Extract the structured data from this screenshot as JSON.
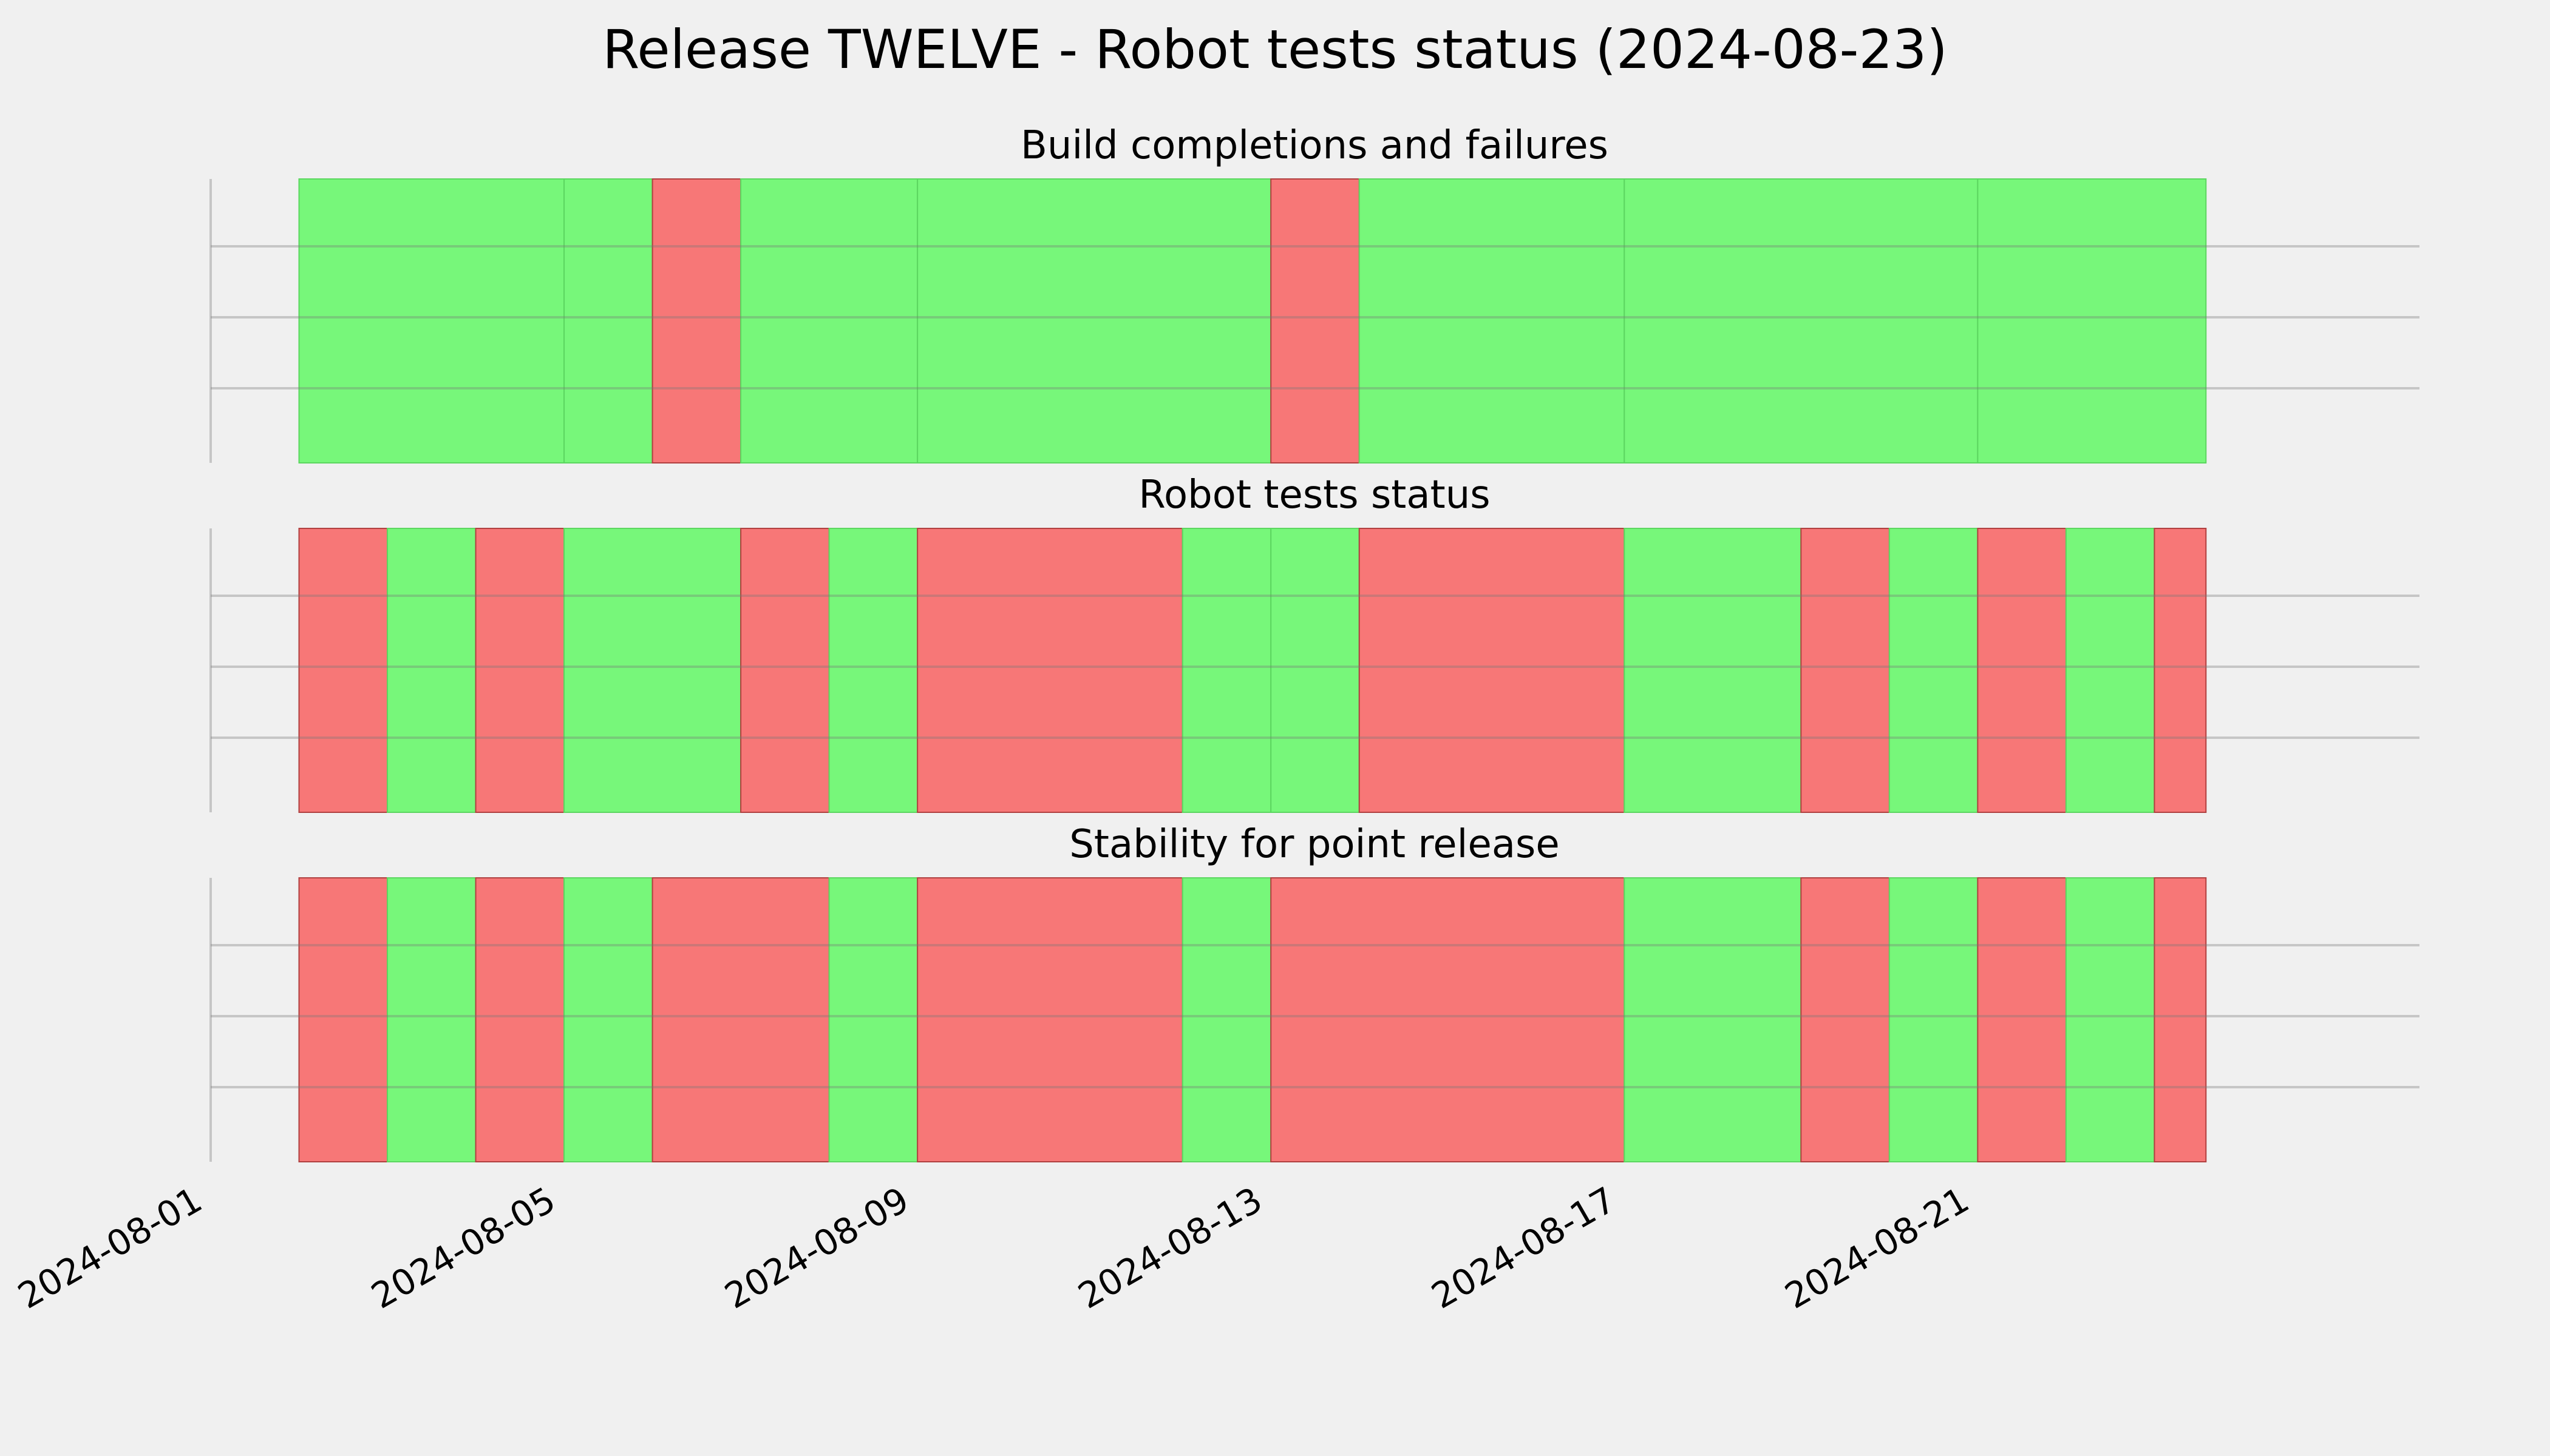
{
  "chart_data": {
    "type": "timeline-status",
    "title": "Release TWELVE - Robot tests status (2024-08-23)",
    "xlim": [
      "2024-08-01",
      "2024-08-26"
    ],
    "x_ticks": [
      "2024-08-01",
      "2024-08-05",
      "2024-08-09",
      "2024-08-13",
      "2024-08-17",
      "2024-08-21"
    ],
    "grid": true,
    "colors": {
      "pass": "#77f77a",
      "fail": "#f77777",
      "background": "#f0f0f0",
      "grid": "#cbcbcb"
    },
    "panels": [
      {
        "title": "Build completions and failures",
        "segments": [
          {
            "start": "2024-08-02",
            "end": "2024-08-05",
            "status": "pass"
          },
          {
            "start": "2024-08-05",
            "end": "2024-08-06",
            "status": "pass"
          },
          {
            "start": "2024-08-06",
            "end": "2024-08-07",
            "status": "fail"
          },
          {
            "start": "2024-08-07",
            "end": "2024-08-09",
            "status": "pass"
          },
          {
            "start": "2024-08-09",
            "end": "2024-08-13",
            "status": "pass"
          },
          {
            "start": "2024-08-13",
            "end": "2024-08-14",
            "status": "fail"
          },
          {
            "start": "2024-08-14",
            "end": "2024-08-17",
            "status": "pass"
          },
          {
            "start": "2024-08-17",
            "end": "2024-08-21",
            "status": "pass"
          },
          {
            "start": "2024-08-21",
            "end": "2024-08-23 14:00",
            "status": "pass"
          }
        ]
      },
      {
        "title": "Robot tests status",
        "segments": [
          {
            "start": "2024-08-02",
            "end": "2024-08-03",
            "status": "fail"
          },
          {
            "start": "2024-08-03",
            "end": "2024-08-04",
            "status": "pass"
          },
          {
            "start": "2024-08-04",
            "end": "2024-08-05",
            "status": "fail"
          },
          {
            "start": "2024-08-05",
            "end": "2024-08-07",
            "status": "pass"
          },
          {
            "start": "2024-08-07",
            "end": "2024-08-08",
            "status": "fail"
          },
          {
            "start": "2024-08-08",
            "end": "2024-08-09",
            "status": "pass"
          },
          {
            "start": "2024-08-09",
            "end": "2024-08-12",
            "status": "fail"
          },
          {
            "start": "2024-08-12",
            "end": "2024-08-13",
            "status": "pass"
          },
          {
            "start": "2024-08-13",
            "end": "2024-08-14",
            "status": "pass"
          },
          {
            "start": "2024-08-14",
            "end": "2024-08-17",
            "status": "fail"
          },
          {
            "start": "2024-08-17",
            "end": "2024-08-19",
            "status": "pass"
          },
          {
            "start": "2024-08-19",
            "end": "2024-08-20",
            "status": "fail"
          },
          {
            "start": "2024-08-20",
            "end": "2024-08-21",
            "status": "pass"
          },
          {
            "start": "2024-08-21",
            "end": "2024-08-22",
            "status": "fail"
          },
          {
            "start": "2024-08-22",
            "end": "2024-08-23",
            "status": "pass"
          },
          {
            "start": "2024-08-23",
            "end": "2024-08-23 14:00",
            "status": "fail"
          }
        ]
      },
      {
        "title": "Stability for point release",
        "segments": [
          {
            "start": "2024-08-02",
            "end": "2024-08-03",
            "status": "fail"
          },
          {
            "start": "2024-08-03",
            "end": "2024-08-04",
            "status": "pass"
          },
          {
            "start": "2024-08-04",
            "end": "2024-08-05",
            "status": "fail"
          },
          {
            "start": "2024-08-05",
            "end": "2024-08-06",
            "status": "pass"
          },
          {
            "start": "2024-08-06",
            "end": "2024-08-08",
            "status": "fail"
          },
          {
            "start": "2024-08-08",
            "end": "2024-08-09",
            "status": "pass"
          },
          {
            "start": "2024-08-09",
            "end": "2024-08-12",
            "status": "fail"
          },
          {
            "start": "2024-08-12",
            "end": "2024-08-13",
            "status": "pass"
          },
          {
            "start": "2024-08-13",
            "end": "2024-08-17",
            "status": "fail"
          },
          {
            "start": "2024-08-17",
            "end": "2024-08-19",
            "status": "pass"
          },
          {
            "start": "2024-08-19",
            "end": "2024-08-20",
            "status": "fail"
          },
          {
            "start": "2024-08-20",
            "end": "2024-08-21",
            "status": "pass"
          },
          {
            "start": "2024-08-21",
            "end": "2024-08-22",
            "status": "fail"
          },
          {
            "start": "2024-08-22",
            "end": "2024-08-23",
            "status": "pass"
          },
          {
            "start": "2024-08-23",
            "end": "2024-08-23 14:00",
            "status": "fail"
          }
        ]
      }
    ]
  }
}
